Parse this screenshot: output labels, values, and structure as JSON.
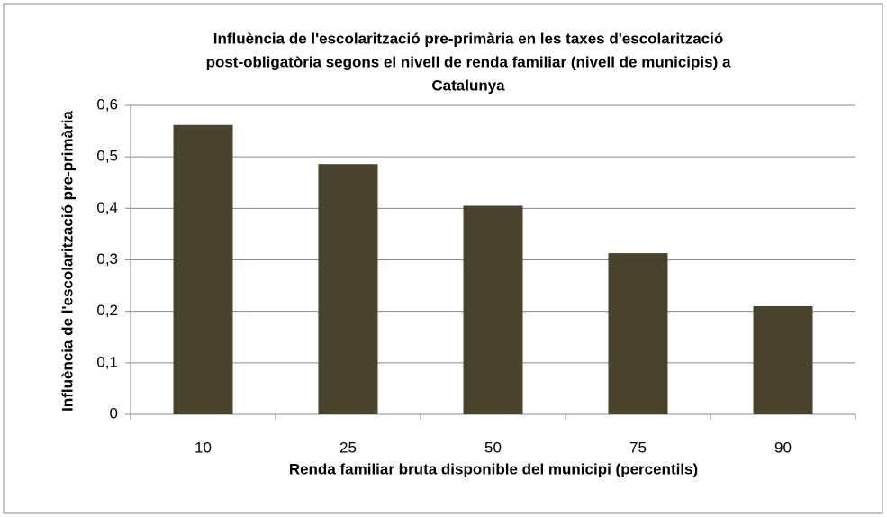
{
  "chart_data": {
    "type": "bar",
    "title": [
      "Influència de l'escolarització pre-primària en les taxes d'escolarització",
      "post-obligatòria segons el nivell de renda familiar (nivell de municipis) a",
      "Catalunya"
    ],
    "x_label": "Renda familiar bruta disponible del municipi (percentils)",
    "y_label": "Influència de l'escolarització pre-primària",
    "categories": [
      "10",
      "25",
      "50",
      "75",
      "90"
    ],
    "values": [
      0.562,
      0.486,
      0.405,
      0.313,
      0.21
    ],
    "color": "#4a432e",
    "ylim": [
      0,
      0.6
    ],
    "yticks": [
      0,
      {
        "value": 0.1,
        "label": "0,1"
      },
      {
        "value": 0.2,
        "label": "0,2"
      },
      {
        "value": 0.3,
        "label": "0,3"
      },
      {
        "value": 0.4,
        "label": "0,4"
      },
      {
        "value": 0.5,
        "label": "0,5"
      },
      {
        "value": 0.6,
        "label": "0,6"
      }
    ],
    "grid": true
  }
}
